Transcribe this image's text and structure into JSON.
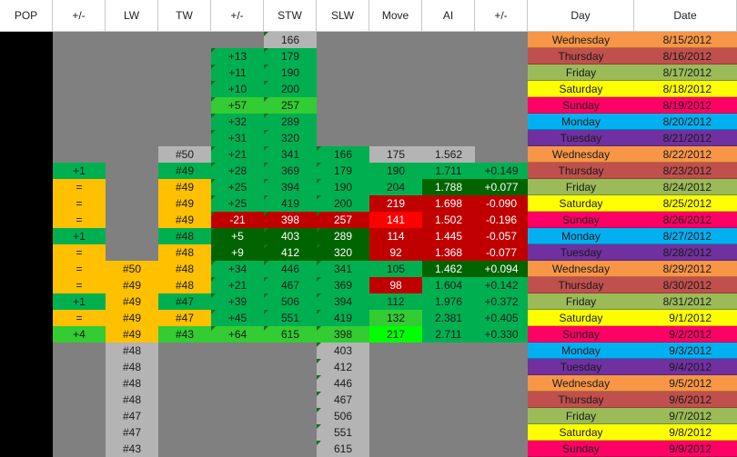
{
  "headers": [
    "POP",
    "+/-",
    "LW",
    "TW",
    "+/-",
    "STW",
    "SLW",
    "Move",
    "AI",
    "+/-",
    "Day",
    "Date"
  ],
  "colors": {
    "green": "#00b050",
    "lightgreen": "#33cc33",
    "brightgreen": "#00ff00",
    "darkgreen": "#006400",
    "orange": "#ffc000",
    "red": "#ff0000",
    "darkred": "#c00000",
    "silver": "#b4b4b4",
    "black": "#000000",
    "grey": "#808080"
  },
  "rows": [
    {
      "day": "Wednesday",
      "date": "8/15/2012",
      "day_color": "#f79646",
      "cells": {
        "stw": "166"
      }
    },
    {
      "day": "Thursday",
      "date": "8/16/2012",
      "day_color": "#c0504d",
      "cells": {
        "d1": "+13",
        "stw": "179"
      }
    },
    {
      "day": "Friday",
      "date": "8/17/2012",
      "day_color": "#9bbb59",
      "cells": {
        "d1": "+11",
        "stw": "190"
      }
    },
    {
      "day": "Saturday",
      "date": "8/18/2012",
      "day_color": "#ffff00",
      "cells": {
        "d1": "+10",
        "stw": "200"
      }
    },
    {
      "day": "Sunday",
      "date": "8/19/2012",
      "day_color": "#ff0066",
      "cells": {
        "d1": "+57",
        "stw": "257"
      }
    },
    {
      "day": "Monday",
      "date": "8/20/2012",
      "day_color": "#00b0f0",
      "cells": {
        "d1": "+32",
        "stw": "289"
      }
    },
    {
      "day": "Tuesday",
      "date": "8/21/2012",
      "day_color": "#7030a0",
      "cells": {
        "d1": "+31",
        "stw": "320"
      }
    },
    {
      "day": "Wednesday",
      "date": "8/22/2012",
      "day_color": "#f79646",
      "cells": {
        "tw": "#50",
        "d1": "+21",
        "stw": "341",
        "slw": "166",
        "move": "175",
        "ai": "1.562"
      }
    },
    {
      "day": "Thursday",
      "date": "8/23/2012",
      "day_color": "#c0504d",
      "cells": {
        "pd": "+1",
        "tw": "#49",
        "d1": "+28",
        "stw": "369",
        "slw": "179",
        "move": "190",
        "ai": "1.711",
        "d2": "+0.149"
      }
    },
    {
      "day": "Friday",
      "date": "8/24/2012",
      "day_color": "#9bbb59",
      "cells": {
        "pd": "=",
        "tw": "#49",
        "d1": "+25",
        "stw": "394",
        "slw": "190",
        "move": "204",
        "ai": "1.788",
        "d2": "+0.077"
      }
    },
    {
      "day": "Saturday",
      "date": "8/25/2012",
      "day_color": "#ffff00",
      "cells": {
        "pd": "=",
        "tw": "#49",
        "d1": "+25",
        "stw": "419",
        "slw": "200",
        "move": "219",
        "ai": "1.698",
        "d2": "-0.090"
      }
    },
    {
      "day": "Sunday",
      "date": "8/26/2012",
      "day_color": "#ff0066",
      "cells": {
        "pd": "=",
        "tw": "#49",
        "d1": "-21",
        "stw": "398",
        "slw": "257",
        "move": "141",
        "ai": "1.502",
        "d2": "-0.196"
      }
    },
    {
      "day": "Monday",
      "date": "8/27/2012",
      "day_color": "#00b0f0",
      "cells": {
        "pd": "+1",
        "tw": "#48",
        "d1": "+5",
        "stw": "403",
        "slw": "289",
        "move": "114",
        "ai": "1.445",
        "d2": "-0.057"
      }
    },
    {
      "day": "Tuesday",
      "date": "8/28/2012",
      "day_color": "#7030a0",
      "cells": {
        "pd": "=",
        "tw": "#48",
        "d1": "+9",
        "stw": "412",
        "slw": "320",
        "move": "92",
        "ai": "1.368",
        "d2": "-0.077"
      }
    },
    {
      "day": "Wednesday",
      "date": "8/29/2012",
      "day_color": "#f79646",
      "cells": {
        "pd": "=",
        "lw": "#50",
        "tw": "#48",
        "d1": "+34",
        "stw": "446",
        "slw": "341",
        "move": "105",
        "ai": "1.462",
        "d2": "+0.094"
      }
    },
    {
      "day": "Thursday",
      "date": "8/30/2012",
      "day_color": "#c0504d",
      "cells": {
        "pd": "=",
        "lw": "#49",
        "tw": "#48",
        "d1": "+21",
        "stw": "467",
        "slw": "369",
        "move": "98",
        "ai": "1.604",
        "d2": "+0.142"
      }
    },
    {
      "day": "Friday",
      "date": "8/31/2012",
      "day_color": "#9bbb59",
      "cells": {
        "pd": "+1",
        "lw": "#49",
        "tw": "#47",
        "d1": "+39",
        "stw": "506",
        "slw": "394",
        "move": "112",
        "ai": "1.976",
        "d2": "+0.372"
      }
    },
    {
      "day": "Saturday",
      "date": "9/1/2012",
      "day_color": "#ffff00",
      "cells": {
        "pd": "=",
        "lw": "#49",
        "tw": "#47",
        "d1": "+45",
        "stw": "551",
        "slw": "419",
        "move": "132",
        "ai": "2.381",
        "d2": "+0.405"
      }
    },
    {
      "day": "Sunday",
      "date": "9/2/2012",
      "day_color": "#ff0066",
      "cells": {
        "pd": "+4",
        "lw": "#49",
        "tw": "#43",
        "d1": "+64",
        "stw": "615",
        "slw": "398",
        "move": "217",
        "ai": "2.711",
        "d2": "+0.330"
      }
    },
    {
      "day": "Monday",
      "date": "9/3/2012",
      "day_color": "#00b0f0",
      "cells": {
        "lw": "#48",
        "slw": "403"
      }
    },
    {
      "day": "Tuesday",
      "date": "9/4/2012",
      "day_color": "#7030a0",
      "cells": {
        "lw": "#48",
        "slw": "412"
      }
    },
    {
      "day": "Wednesday",
      "date": "9/5/2012",
      "day_color": "#f79646",
      "cells": {
        "lw": "#48",
        "slw": "446"
      }
    },
    {
      "day": "Thursday",
      "date": "9/6/2012",
      "day_color": "#c0504d",
      "cells": {
        "lw": "#48",
        "slw": "467"
      }
    },
    {
      "day": "Friday",
      "date": "9/7/2012",
      "day_color": "#9bbb59",
      "cells": {
        "lw": "#47",
        "slw": "506"
      }
    },
    {
      "day": "Saturday",
      "date": "9/8/2012",
      "day_color": "#ffff00",
      "cells": {
        "lw": "#47",
        "slw": "551"
      }
    },
    {
      "day": "Sunday",
      "date": "9/9/2012",
      "day_color": "#ff0066",
      "cells": {
        "lw": "#43",
        "slw": "615"
      }
    }
  ]
}
